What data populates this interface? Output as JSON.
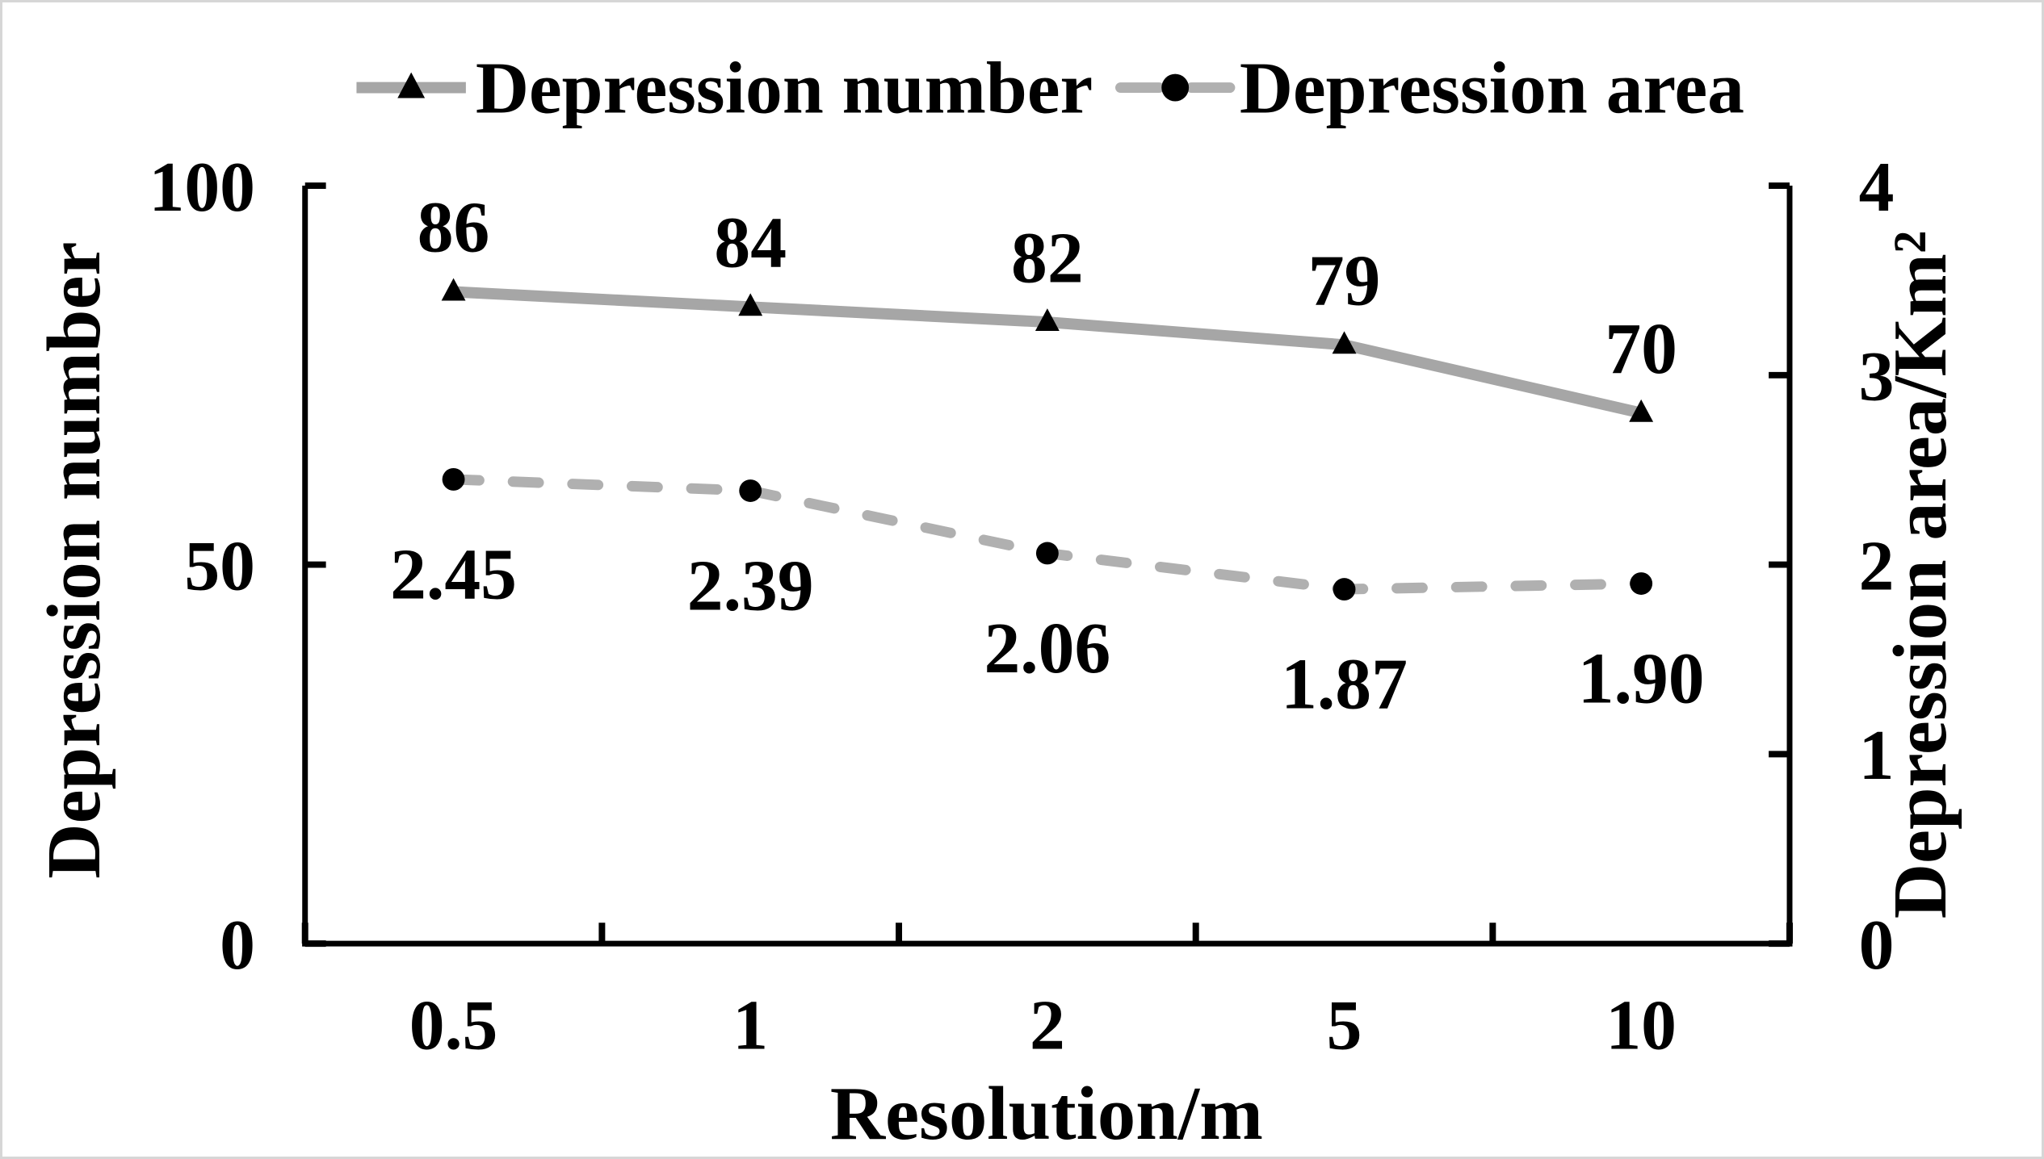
{
  "figure": {
    "background_color": "#ffffff",
    "border_color": "#d6d6d6",
    "axis_color": "#000000"
  },
  "chart_data": {
    "type": "line",
    "title": "",
    "categories": [
      "0.5",
      "1",
      "2",
      "5",
      "10"
    ],
    "xlabel": "Resolution/m",
    "ylabel_left": "Depression number",
    "ylabel_right": "Depression area/Km²",
    "grid": false,
    "legend_position": "top",
    "axes": {
      "left": {
        "range": [
          0,
          100
        ],
        "ticks": [
          0,
          50,
          100
        ],
        "tick_labels": [
          "0",
          "50",
          "100"
        ]
      },
      "right": {
        "range": [
          0,
          4
        ],
        "ticks": [
          0,
          1,
          2,
          3,
          4
        ],
        "tick_labels": [
          "0",
          "1",
          "2",
          "3",
          "4"
        ]
      }
    },
    "series": [
      {
        "name": "Depression number",
        "axis": "left",
        "values": [
          86,
          84,
          82,
          79,
          70
        ],
        "data_labels": [
          "86",
          "84",
          "82",
          "79",
          "70"
        ],
        "data_label_position": "above",
        "marker": "triangle",
        "marker_color": "#000000",
        "line_style": "solid",
        "line_color": "#a6a6a6"
      },
      {
        "name": "Depression area",
        "axis": "right",
        "values": [
          2.45,
          2.39,
          2.06,
          1.87,
          1.9
        ],
        "data_labels": [
          "2.45",
          "2.39",
          "2.06",
          "1.87",
          "1.90"
        ],
        "data_label_position": "below",
        "marker": "circle",
        "marker_color": "#000000",
        "line_style": "dashed",
        "line_color": "#b0b0b0"
      }
    ]
  }
}
